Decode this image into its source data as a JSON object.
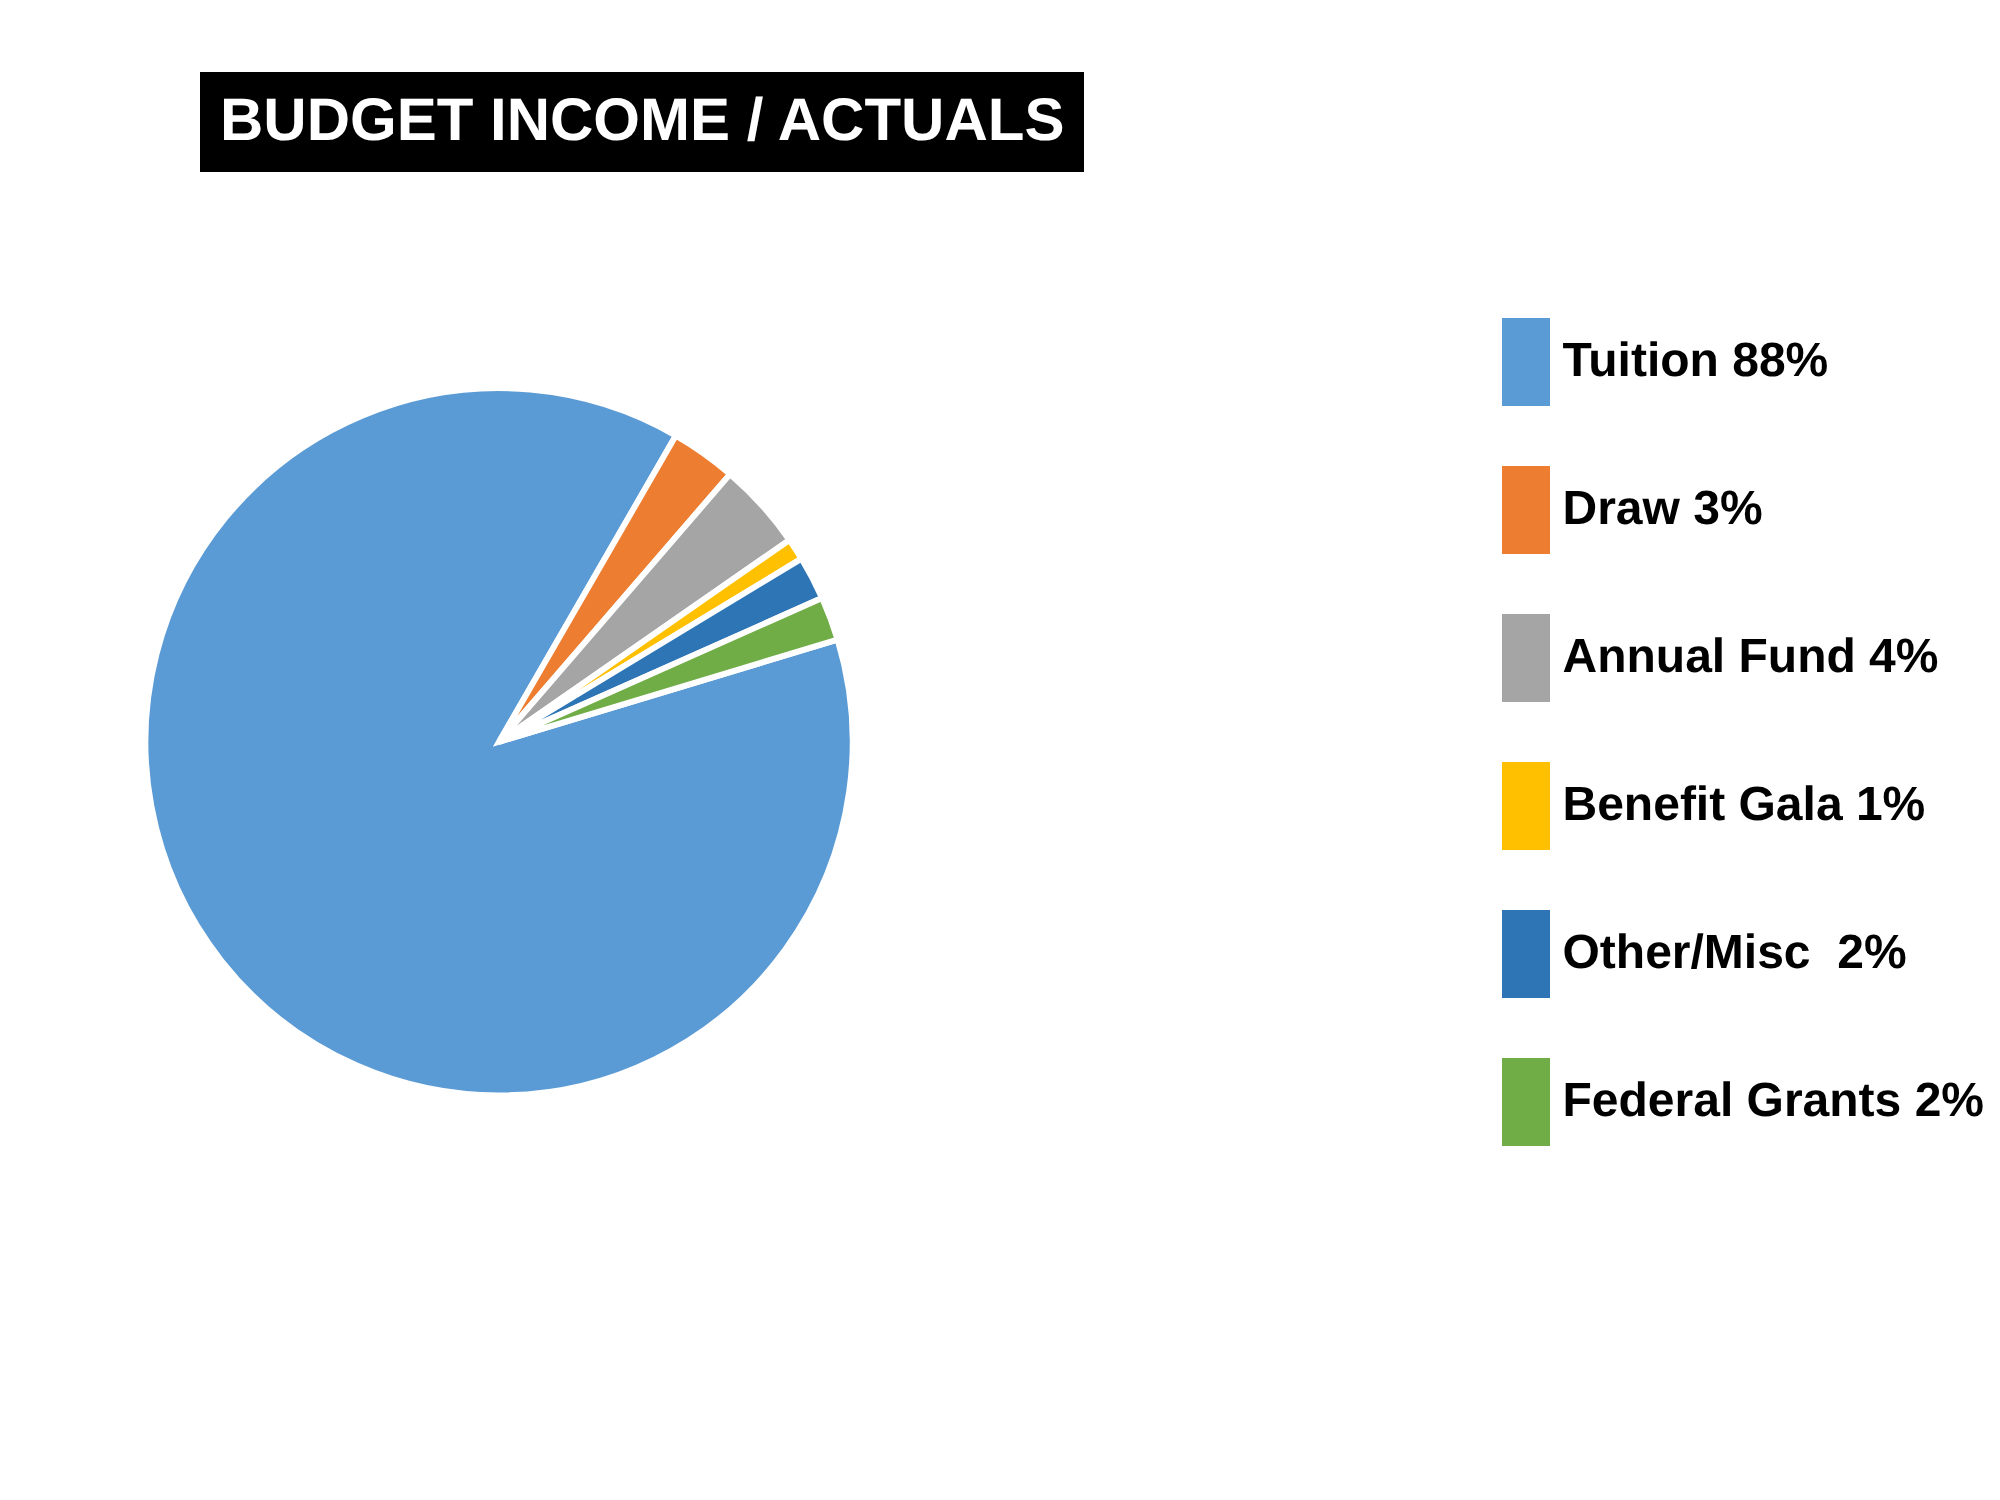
{
  "chart_data": {
    "type": "pie",
    "title": "BUDGET INCOME / ACTUALS",
    "categories": [
      "Tuition 88%",
      "Draw 3%",
      "Annual Fund 4%",
      "Benefit Gala 1%",
      "Other/Misc  2%",
      "Federal Grants 2%"
    ],
    "values": [
      88,
      3,
      4,
      1,
      2,
      2
    ],
    "colors": [
      "#5b9bd5",
      "#ed7d31",
      "#a5a5a5",
      "#ffc000",
      "#2e75b6",
      "#70ad47"
    ],
    "legend": "right"
  }
}
